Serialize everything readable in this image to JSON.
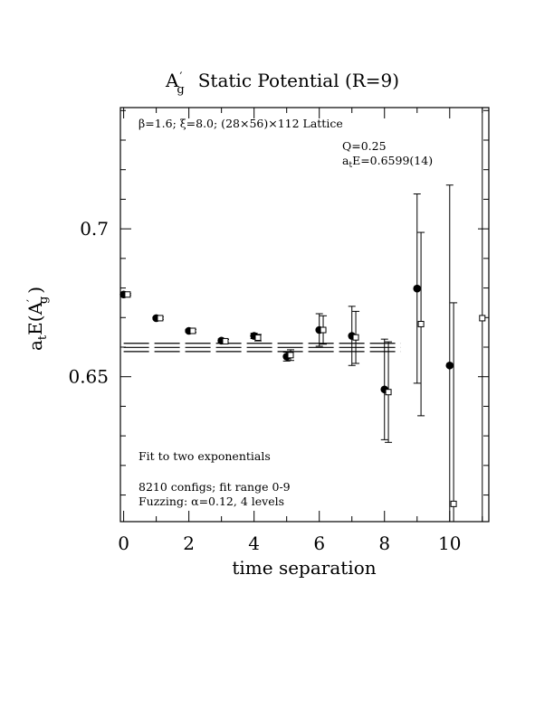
{
  "chart_data": {
    "type": "scatter",
    "title_main": "A",
    "title_main_sub": "g",
    "title_rest": "Static Potential (R=9)",
    "ylabel_main": "a",
    "ylabel_t": "t",
    "ylabel_E": "E(A",
    "ylabel_g": "g",
    "ylabel_close": ")",
    "xlabel": "time separation",
    "xlim": [
      -0.1,
      11.2
    ],
    "ylim": [
      0.601,
      0.741
    ],
    "x_ticks": [
      "0",
      "2",
      "4",
      "6",
      "8",
      "10"
    ],
    "y_ticks": [
      "0.65",
      "0.7"
    ],
    "annotations": {
      "lattice": "β=1.6; ξ=8.0; (28×56)×112 Lattice",
      "q_value": "Q=0.25",
      "energy_prefix": "a",
      "energy_sub": "t",
      "energy_rest": "E=0.6599(14)",
      "fit": "Fit to two exponentials",
      "configs": "8210 configs; fit range 0-9",
      "fuzzing": "Fuzzing: α=0.12, 4 levels"
    },
    "fit_band": {
      "x_range": [
        0,
        8.5
      ],
      "center": 0.6599,
      "error": 0.0014
    },
    "series": [
      {
        "marker": "filled-circle",
        "points": [
          {
            "x": 0,
            "y": 0.6778,
            "err": 0.0003
          },
          {
            "x": 1,
            "y": 0.6698,
            "err": 0.0004
          },
          {
            "x": 2,
            "y": 0.6655,
            "err": 0.0005
          },
          {
            "x": 3,
            "y": 0.6622,
            "err": 0.0006
          },
          {
            "x": 4,
            "y": 0.6638,
            "err": 0.0009
          },
          {
            "x": 5,
            "y": 0.6568,
            "err": 0.0015
          },
          {
            "x": 6,
            "y": 0.6658,
            "err": 0.0055
          },
          {
            "x": 7,
            "y": 0.6638,
            "err": 0.01
          },
          {
            "x": 8,
            "y": 0.6457,
            "err": 0.017
          },
          {
            "x": 9,
            "y": 0.6798,
            "err": 0.032
          },
          {
            "x": 10,
            "y": 0.6538,
            "err": 0.061
          }
        ]
      },
      {
        "marker": "open-square",
        "points": [
          {
            "x": 0.12,
            "y": 0.6778,
            "err": 0.0003
          },
          {
            "x": 1.12,
            "y": 0.6698,
            "err": 0.0004
          },
          {
            "x": 2.12,
            "y": 0.6655,
            "err": 0.0005
          },
          {
            "x": 3.12,
            "y": 0.662,
            "err": 0.0006
          },
          {
            "x": 4.12,
            "y": 0.6632,
            "err": 0.0011
          },
          {
            "x": 5.12,
            "y": 0.6573,
            "err": 0.0018
          },
          {
            "x": 6.12,
            "y": 0.6658,
            "err": 0.0048
          },
          {
            "x": 7.12,
            "y": 0.6633,
            "err": 0.0088
          },
          {
            "x": 8.12,
            "y": 0.6448,
            "err": 0.017
          },
          {
            "x": 9.12,
            "y": 0.6678,
            "err": 0.031
          },
          {
            "x": 10.12,
            "y": 0.607,
            "err": 0.068
          },
          {
            "x": 11.0,
            "y": 0.6698,
            "err": 0.08
          }
        ]
      }
    ]
  }
}
